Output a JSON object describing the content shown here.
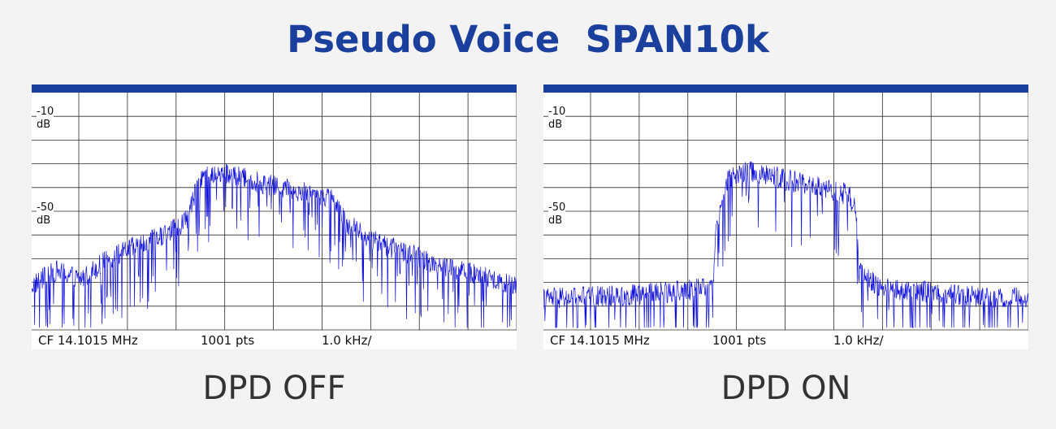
{
  "title": "Pseudo Voice  SPAN10k",
  "colors": {
    "accent": "#1b3f9c",
    "trace": "#1010d8",
    "grid": "#2a2a2a",
    "background": "#f3f3f3"
  },
  "chart_data": [
    {
      "type": "line",
      "caption": "DPD OFF",
      "ref_labels": {
        "top_value": "-10",
        "top_unit": "dB",
        "mid_value": "-50",
        "mid_unit": "dB"
      },
      "footer": {
        "center_freq": "CF 14.1015 MHz",
        "points": "1001 pts",
        "span_per_div": "1.0 kHz/"
      },
      "x_range_khz": [
        -5,
        5
      ],
      "y_range_db": [
        -110,
        0
      ],
      "grid": true,
      "grid_divisions": {
        "x": 10,
        "y": 10
      },
      "series": [
        {
          "x_khz": [
            -5.0,
            -4.5,
            -4.0,
            -3.5,
            -3.0,
            -2.5,
            -2.0,
            -1.8,
            -1.5,
            -1.0,
            -0.5,
            0.0,
            0.5,
            1.0,
            1.3,
            1.5,
            2.0,
            2.5,
            3.0,
            3.5,
            4.0,
            4.5,
            5.0
          ],
          "y_db": [
            -89,
            -82,
            -86,
            -78,
            -72,
            -68,
            -62,
            -58,
            -38,
            -37,
            -40,
            -43,
            -45,
            -47,
            -50,
            -60,
            -68,
            -72,
            -76,
            -80,
            -83,
            -86,
            -89
          ]
        }
      ]
    },
    {
      "type": "line",
      "caption": "DPD ON",
      "ref_labels": {
        "top_value": "-10",
        "top_unit": "dB",
        "mid_value": "-50",
        "mid_unit": "dB"
      },
      "footer": {
        "center_freq": "CF 14.1015 MHz",
        "points": "1001 pts",
        "span_per_div": "1.0 kHz/"
      },
      "x_range_khz": [
        -5,
        5
      ],
      "y_range_db": [
        -110,
        0
      ],
      "grid": true,
      "grid_divisions": {
        "x": 10,
        "y": 10
      },
      "series": [
        {
          "x_khz": [
            -5.0,
            -4.0,
            -3.0,
            -2.0,
            -1.5,
            -1.45,
            -1.2,
            -0.8,
            -0.3,
            0.2,
            0.8,
            1.3,
            1.45,
            1.5,
            2.0,
            3.0,
            4.0,
            5.0
          ],
          "y_db": [
            -95,
            -94,
            -93,
            -91,
            -88,
            -62,
            -40,
            -36,
            -38,
            -41,
            -44,
            -47,
            -55,
            -83,
            -90,
            -92,
            -94,
            -95
          ]
        }
      ]
    }
  ]
}
